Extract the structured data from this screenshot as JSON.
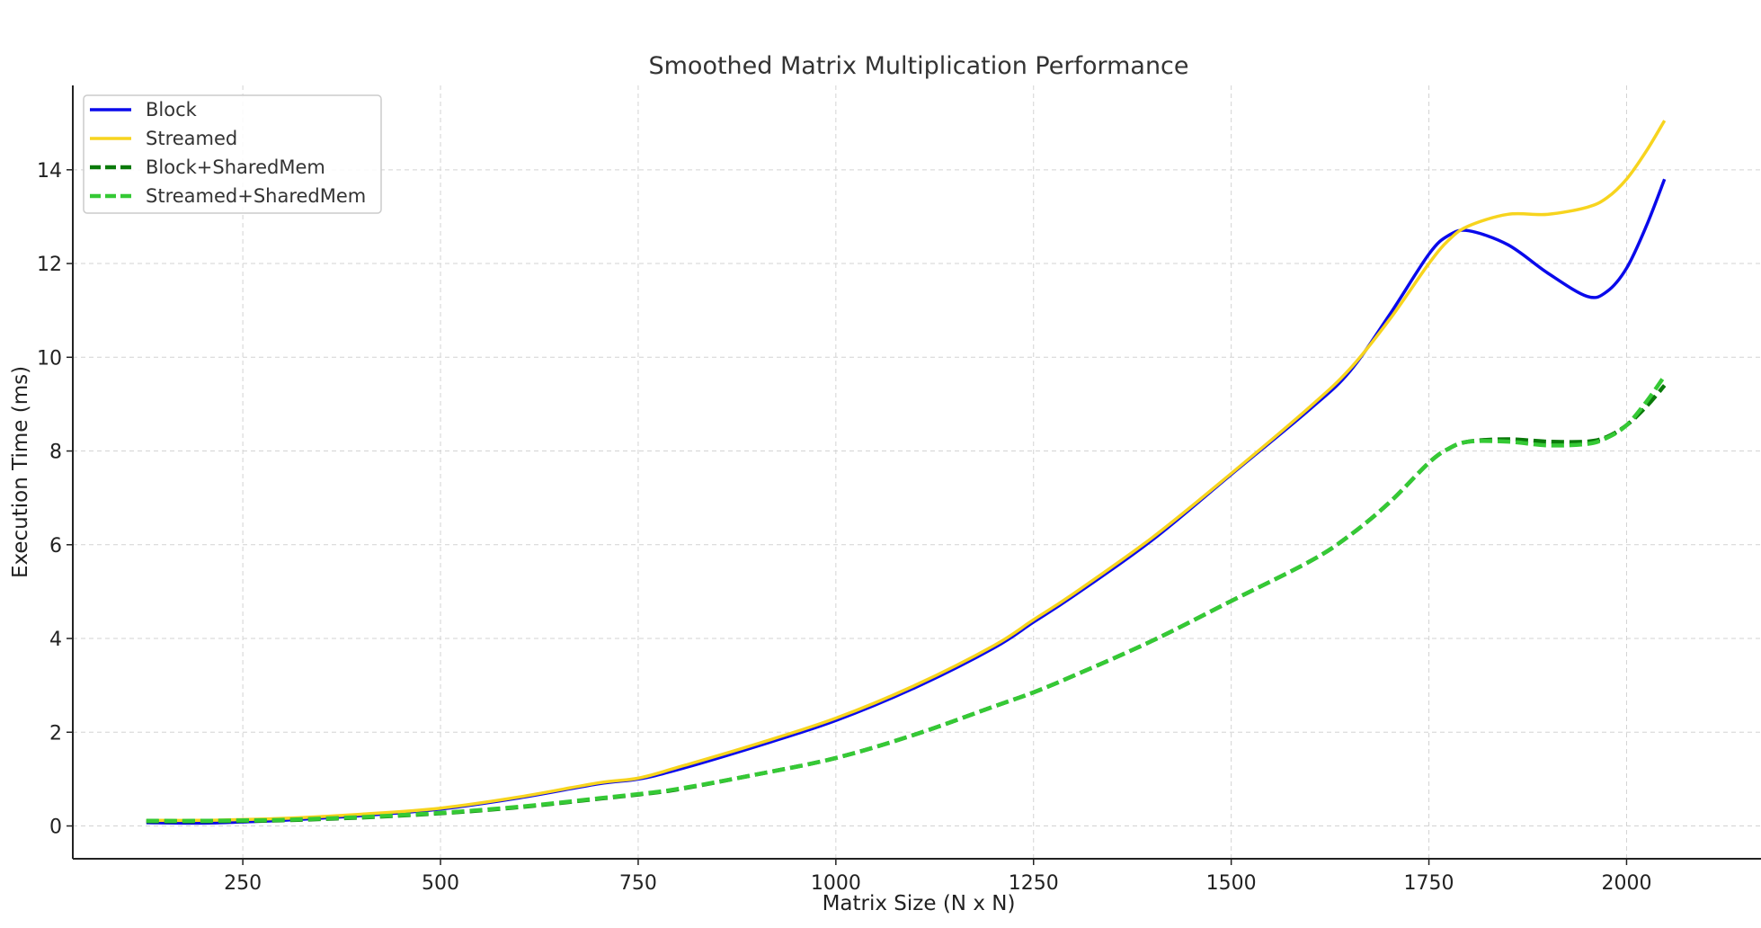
{
  "chart_data": {
    "type": "line",
    "title": "Smoothed Matrix Multiplication Performance",
    "xlabel": "Matrix Size (N x N)",
    "ylabel": "Execution Time (ms)",
    "xlim": [
      35,
      2170
    ],
    "ylim": [
      -0.7,
      15.8
    ],
    "xticks": [
      250,
      500,
      750,
      1000,
      1250,
      1500,
      1750,
      2000
    ],
    "yticks": [
      0,
      2,
      4,
      6,
      8,
      10,
      12,
      14
    ],
    "grid": true,
    "legend_position": "top-left",
    "x": [
      128,
      200,
      256,
      300,
      400,
      500,
      600,
      700,
      750,
      800,
      900,
      1000,
      1100,
      1200,
      1250,
      1300,
      1400,
      1500,
      1600,
      1650,
      1700,
      1750,
      1775,
      1800,
      1850,
      1900,
      1950,
      1975,
      2000,
      2025,
      2048
    ],
    "series": [
      {
        "name": "Block",
        "color": "#0a0aeb",
        "style": "solid",
        "values": [
          0.07,
          0.06,
          0.09,
          0.12,
          0.22,
          0.36,
          0.6,
          0.9,
          1.0,
          1.2,
          1.7,
          2.25,
          2.95,
          3.8,
          4.35,
          4.9,
          6.1,
          7.5,
          8.9,
          9.7,
          10.9,
          12.2,
          12.6,
          12.7,
          12.4,
          11.8,
          11.3,
          11.4,
          11.9,
          12.8,
          13.8
        ]
      },
      {
        "name": "Streamed",
        "color": "#f7d41e",
        "style": "solid",
        "values": [
          0.12,
          0.12,
          0.14,
          0.16,
          0.25,
          0.38,
          0.62,
          0.92,
          1.02,
          1.25,
          1.75,
          2.3,
          3.0,
          3.85,
          4.4,
          4.95,
          6.15,
          7.52,
          8.95,
          9.75,
          10.8,
          12.0,
          12.5,
          12.8,
          13.05,
          13.05,
          13.2,
          13.4,
          13.8,
          14.4,
          15.05
        ]
      },
      {
        "name": "Block+SharedMem",
        "color": "#0a7a0a",
        "style": "dashed",
        "values": [
          0.1,
          0.1,
          0.11,
          0.12,
          0.18,
          0.27,
          0.4,
          0.58,
          0.67,
          0.78,
          1.1,
          1.45,
          1.95,
          2.55,
          2.85,
          3.2,
          3.95,
          4.8,
          5.65,
          6.2,
          6.9,
          7.75,
          8.05,
          8.2,
          8.25,
          8.2,
          8.2,
          8.3,
          8.55,
          8.95,
          9.4
        ]
      },
      {
        "name": "Streamed+SharedMem",
        "color": "#35c935",
        "style": "dashed",
        "values": [
          0.11,
          0.11,
          0.12,
          0.13,
          0.19,
          0.28,
          0.41,
          0.59,
          0.68,
          0.79,
          1.1,
          1.45,
          1.95,
          2.55,
          2.85,
          3.2,
          3.95,
          4.8,
          5.65,
          6.2,
          6.9,
          7.75,
          8.05,
          8.2,
          8.2,
          8.12,
          8.15,
          8.28,
          8.55,
          9.05,
          9.6
        ]
      }
    ]
  }
}
